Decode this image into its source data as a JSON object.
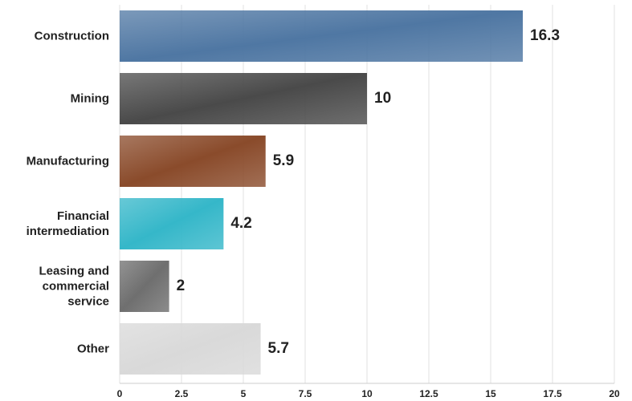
{
  "chart_data": {
    "type": "bar",
    "orientation": "horizontal",
    "categories": [
      "Construction",
      "Mining",
      "Manufacturing",
      "Financial intermediation",
      "Leasing and commercial service",
      "Other"
    ],
    "values": [
      16.3,
      10,
      5.9,
      4.2,
      2,
      5.7
    ],
    "colors": [
      "#4f77a3",
      "#4a4a4a",
      "#8a4b2b",
      "#35b7c9",
      "#6f6f6f",
      "#d9d9d9"
    ],
    "xlim": [
      0,
      20
    ],
    "xticks": [
      0,
      2.5,
      5,
      7.5,
      10,
      12.5,
      15,
      17.5,
      20
    ],
    "grid": true
  }
}
